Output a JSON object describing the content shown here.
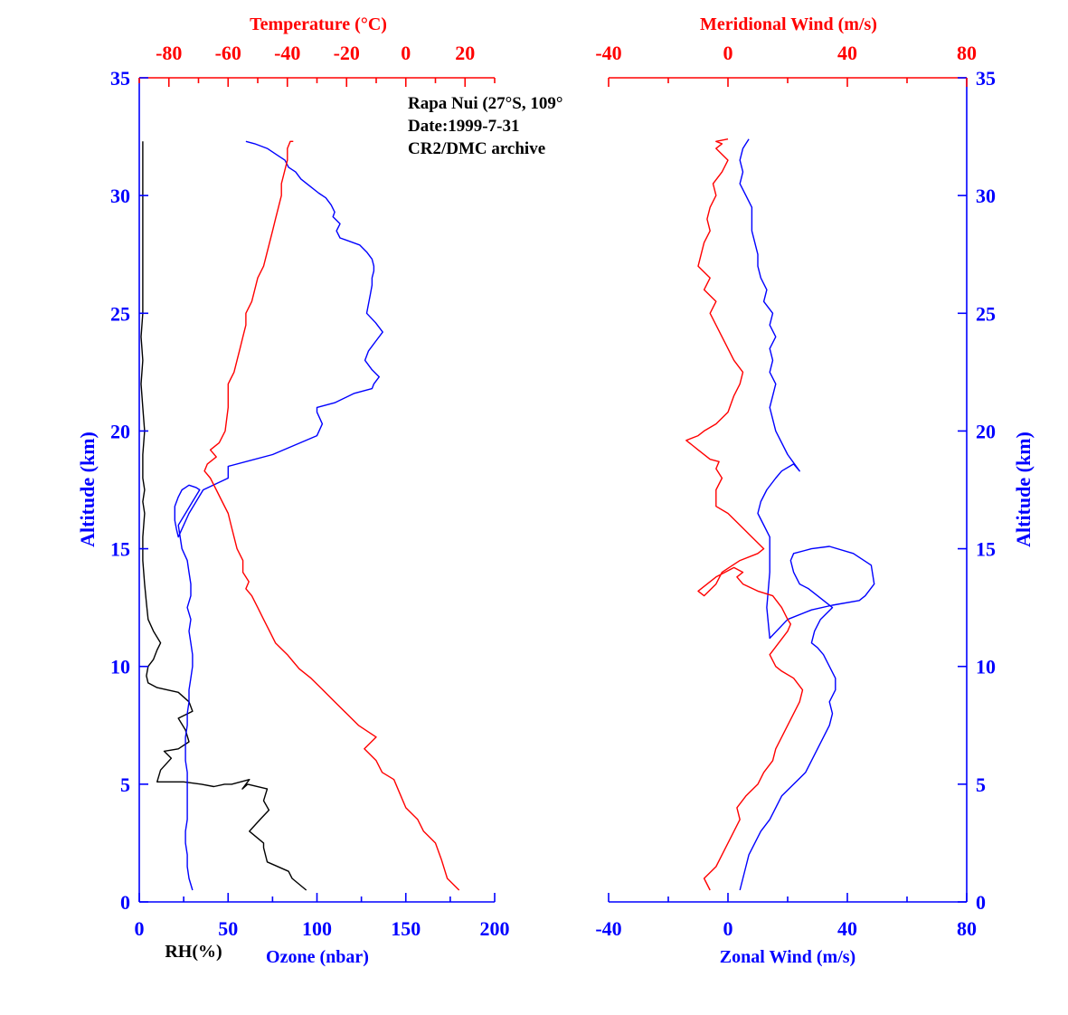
{
  "colors": {
    "blue": "#0000ff",
    "red": "#ff0000",
    "black": "#000000"
  },
  "chart_data": [
    {
      "type": "line",
      "annotation": [
        "Rapa Nui (27°S, 109°",
        "Date:1999-7-31",
        "CR2/DMC archive"
      ],
      "ylabel": "Altitude (km)",
      "ylim": [
        0,
        35
      ],
      "yticks": [
        "0",
        "5",
        "10",
        "15",
        "20",
        "25",
        "30",
        "35"
      ],
      "bottom_axis": {
        "xlim": [
          0,
          200
        ],
        "ticks": [
          "0",
          "50",
          "100",
          "150",
          "200"
        ],
        "xlabels": [
          "RH(%)",
          "Ozone (nbar)"
        ]
      },
      "top_axis": {
        "xlabel": "Temperature (°C)",
        "xlim": [
          -90,
          30
        ],
        "ticks": [
          "-80",
          "-60",
          "-40",
          "-20",
          "0",
          "20"
        ]
      },
      "series": [
        {
          "name": "RH(%)",
          "axis": "bottom",
          "color": "#000000",
          "x": [
            94,
            86,
            84,
            72,
            70,
            70,
            62,
            68,
            73,
            70,
            72,
            61,
            58,
            62,
            52,
            48,
            42,
            35,
            25,
            16,
            10,
            12,
            18,
            14,
            22,
            28,
            26,
            22,
            30,
            28,
            22,
            16,
            10,
            5,
            4,
            5,
            8,
            10,
            12,
            8,
            5,
            4,
            3,
            2,
            2,
            3,
            2,
            3,
            2,
            2,
            2,
            3,
            2,
            1,
            2,
            1,
            2,
            2,
            2,
            2,
            2,
            2,
            2,
            2,
            2,
            2
          ],
          "y": [
            0.5,
            1.0,
            1.3,
            1.7,
            2.3,
            2.5,
            3.0,
            3.5,
            3.9,
            4.3,
            4.8,
            5.0,
            4.8,
            5.2,
            5.0,
            5.0,
            4.9,
            5.0,
            5.1,
            5.1,
            5.1,
            5.6,
            6.1,
            6.4,
            6.5,
            6.8,
            7.3,
            7.8,
            8.1,
            8.5,
            8.9,
            9.0,
            9.1,
            9.3,
            9.6,
            10.0,
            10.3,
            10.7,
            11.0,
            11.5,
            12.0,
            12.7,
            13.5,
            14.5,
            15.5,
            16.5,
            17.0,
            17.5,
            18.0,
            18.5,
            19.0,
            20.0,
            21.0,
            22.0,
            23.0,
            24.0,
            25.0,
            26.0,
            27.0,
            28.0,
            29.0,
            30.0,
            31.0,
            31.5,
            32.0,
            32.3
          ]
        },
        {
          "name": "Ozone (nbar)",
          "axis": "bottom",
          "color": "#0000ff",
          "x": [
            30,
            28,
            27,
            27,
            26,
            26,
            27,
            27,
            27,
            27,
            27,
            26,
            26,
            26,
            27,
            27,
            28,
            28,
            29,
            30,
            30,
            29,
            28,
            29,
            27,
            29,
            29,
            28,
            27,
            24,
            23,
            22,
            26,
            30,
            34,
            32,
            28,
            26,
            24,
            22,
            20,
            20,
            20,
            21,
            22,
            28,
            36,
            50,
            50,
            75,
            100,
            103,
            100,
            100,
            110,
            121,
            131,
            132,
            135,
            131,
            127,
            129,
            133,
            137,
            133,
            128,
            129,
            130,
            131,
            131,
            132,
            132,
            131,
            128,
            124,
            113,
            111,
            113,
            109,
            110,
            108,
            105,
            101,
            96,
            91,
            88,
            84,
            82,
            78,
            72,
            65,
            60
          ],
          "y": [
            0.5,
            1.0,
            1.5,
            2.0,
            2.5,
            3.0,
            3.5,
            4.0,
            4.5,
            5.0,
            5.5,
            6.0,
            6.5,
            7.0,
            7.5,
            8.0,
            8.5,
            9.0,
            9.5,
            10.0,
            10.5,
            11.0,
            11.5,
            12.0,
            12.5,
            13.0,
            13.5,
            14.0,
            14.5,
            15.0,
            15.5,
            16.0,
            16.5,
            17.0,
            17.5,
            17.6,
            17.7,
            17.6,
            17.5,
            17.2,
            16.8,
            16.5,
            16.2,
            15.8,
            15.5,
            16.5,
            17.5,
            18.0,
            18.5,
            19.0,
            19.8,
            20.3,
            20.8,
            21.0,
            21.2,
            21.6,
            21.8,
            22.0,
            22.3,
            22.6,
            23.0,
            23.4,
            23.8,
            24.2,
            24.6,
            25.0,
            25.4,
            25.8,
            26.2,
            26.5,
            26.8,
            27.0,
            27.3,
            27.6,
            27.9,
            28.2,
            28.5,
            28.8,
            29.1,
            29.3,
            29.6,
            29.9,
            30.1,
            30.4,
            30.7,
            31.0,
            31.2,
            31.5,
            31.7,
            32.0,
            32.2,
            32.3
          ]
        },
        {
          "name": "Temperature (°C)",
          "axis": "top",
          "color": "#ff0000",
          "x": [
            18,
            14,
            12,
            10,
            6,
            4,
            0,
            -2,
            -4,
            -8,
            -10,
            -14,
            -10,
            -16,
            -20,
            -24,
            -28,
            -32,
            -36,
            -38,
            -40,
            -44,
            -46,
            -48,
            -50,
            -52,
            -54,
            -53,
            -55,
            -55,
            -57,
            -58,
            -59,
            -60,
            -62,
            -64,
            -66,
            -68,
            -67,
            -64,
            -66,
            -63,
            -61,
            -60,
            -60,
            -58,
            -57,
            -56,
            -55,
            -54,
            -54,
            -52,
            -51,
            -50,
            -48,
            -47,
            -46,
            -45,
            -44,
            -43,
            -42,
            -42,
            -41,
            -40,
            -40,
            -39,
            -38
          ],
          "y": [
            0.5,
            1.0,
            1.8,
            2.5,
            3.0,
            3.5,
            4.0,
            4.6,
            5.2,
            5.5,
            6.0,
            6.5,
            7.0,
            7.5,
            8.0,
            8.5,
            9.0,
            9.5,
            9.9,
            10.2,
            10.5,
            11.0,
            11.5,
            12.0,
            12.5,
            13.0,
            13.3,
            13.6,
            14.0,
            14.5,
            15.0,
            15.5,
            16.0,
            16.5,
            17.0,
            17.5,
            18.0,
            18.3,
            18.6,
            18.9,
            19.2,
            19.5,
            20.0,
            21.0,
            22.0,
            22.5,
            23.0,
            23.5,
            24.0,
            24.5,
            25.0,
            25.5,
            26.0,
            26.5,
            27.0,
            27.5,
            28.0,
            28.5,
            29.0,
            29.5,
            30.0,
            30.5,
            31.0,
            31.5,
            32.0,
            32.3,
            32.3
          ]
        }
      ]
    },
    {
      "type": "line",
      "ylabel": "Altitude (km)",
      "ylim": [
        0,
        35
      ],
      "yticks": [
        "0",
        "5",
        "10",
        "15",
        "20",
        "25",
        "30",
        "35"
      ],
      "bottom_axis": {
        "xlabel": "Zonal Wind (m/s)",
        "xlim": [
          -40,
          80
        ],
        "ticks": [
          "-40",
          "0",
          "40",
          "80"
        ]
      },
      "top_axis": {
        "xlabel": "Meridional Wind (m/s)",
        "xlim": [
          -40,
          80
        ],
        "ticks": [
          "-40",
          "0",
          "40",
          "80"
        ]
      },
      "series": [
        {
          "name": "Zonal Wind (m/s)",
          "axis": "bottom",
          "color": "#0000ff",
          "x": [
            4,
            5,
            6,
            7,
            9,
            11,
            14,
            16,
            18,
            22,
            26,
            28,
            30,
            32,
            34,
            35,
            34,
            36,
            36,
            34,
            32,
            30,
            28,
            29,
            31,
            35,
            30,
            27,
            24,
            22,
            21,
            22,
            28,
            34,
            42,
            48,
            49,
            46,
            44,
            35,
            28,
            20,
            14,
            13,
            14,
            14,
            14,
            12,
            10,
            11,
            13,
            16,
            18,
            22,
            24,
            20,
            16,
            14,
            15,
            16,
            14,
            15,
            14,
            16,
            14,
            15,
            12,
            13,
            11,
            10,
            10,
            9,
            8,
            8,
            8,
            6,
            4,
            5,
            4,
            5,
            6,
            7
          ],
          "y": [
            0.5,
            1.0,
            1.5,
            2.0,
            2.5,
            3.0,
            3.5,
            4.0,
            4.5,
            5.0,
            5.5,
            6.0,
            6.5,
            7.0,
            7.5,
            8.0,
            8.5,
            9.0,
            9.5,
            10.0,
            10.5,
            10.8,
            11.0,
            11.5,
            12.0,
            12.5,
            13.0,
            13.3,
            13.5,
            14.0,
            14.5,
            14.8,
            15.0,
            15.1,
            14.8,
            14.3,
            13.5,
            13.0,
            12.8,
            12.6,
            12.4,
            12.0,
            11.2,
            12.5,
            14.0,
            15.0,
            15.5,
            16.0,
            16.5,
            17.0,
            17.5,
            18.0,
            18.3,
            18.6,
            18.3,
            19.0,
            20.0,
            21.0,
            21.5,
            22.0,
            22.5,
            23.0,
            23.5,
            24.0,
            24.5,
            25.0,
            25.5,
            26.0,
            26.5,
            27.0,
            27.5,
            28.0,
            28.5,
            29.0,
            29.5,
            30.0,
            30.5,
            31.0,
            31.5,
            32.0,
            32.2,
            32.4
          ]
        },
        {
          "name": "Meridional Wind (m/s)",
          "axis": "top",
          "color": "#ff0000",
          "x": [
            -6,
            -8,
            -4,
            -2,
            0,
            2,
            4,
            3,
            6,
            10,
            12,
            15,
            16,
            18,
            20,
            22,
            24,
            25,
            22,
            18,
            16,
            14,
            17,
            20,
            21,
            20,
            18,
            15,
            10,
            5,
            3,
            5,
            2,
            -4,
            -10,
            -8,
            -4,
            -2,
            4,
            10,
            12,
            8,
            4,
            0,
            -4,
            -4,
            -2,
            -4,
            -3,
            -6,
            -10,
            -12,
            -14,
            -10,
            -8,
            -4,
            0,
            2,
            4,
            5,
            2,
            0,
            -2,
            -4,
            -6,
            -4,
            -8,
            -6,
            -10,
            -9,
            -8,
            -6,
            -7,
            -6,
            -4,
            -5,
            -2,
            0,
            -4,
            -2,
            -4,
            0
          ],
          "y": [
            0.5,
            1.0,
            1.5,
            2.0,
            2.5,
            3.0,
            3.5,
            4.0,
            4.5,
            5.0,
            5.5,
            6.0,
            6.5,
            7.0,
            7.5,
            8.0,
            8.5,
            9.0,
            9.5,
            9.8,
            10.0,
            10.5,
            11.0,
            11.5,
            11.8,
            12.0,
            12.5,
            13.0,
            13.2,
            13.5,
            13.8,
            14.0,
            14.2,
            13.8,
            13.2,
            13.0,
            13.5,
            14.0,
            14.5,
            14.8,
            15.0,
            15.5,
            16.0,
            16.5,
            16.8,
            17.5,
            18.0,
            18.4,
            18.7,
            18.8,
            19.2,
            19.4,
            19.6,
            19.8,
            20.0,
            20.3,
            20.8,
            21.5,
            22.0,
            22.5,
            23.0,
            23.5,
            24.0,
            24.5,
            25.0,
            25.5,
            26.0,
            26.5,
            27.0,
            27.5,
            28.0,
            28.5,
            29.0,
            29.5,
            30.0,
            30.5,
            31.0,
            31.5,
            32.0,
            32.2,
            32.3,
            32.4
          ]
        }
      ]
    }
  ]
}
